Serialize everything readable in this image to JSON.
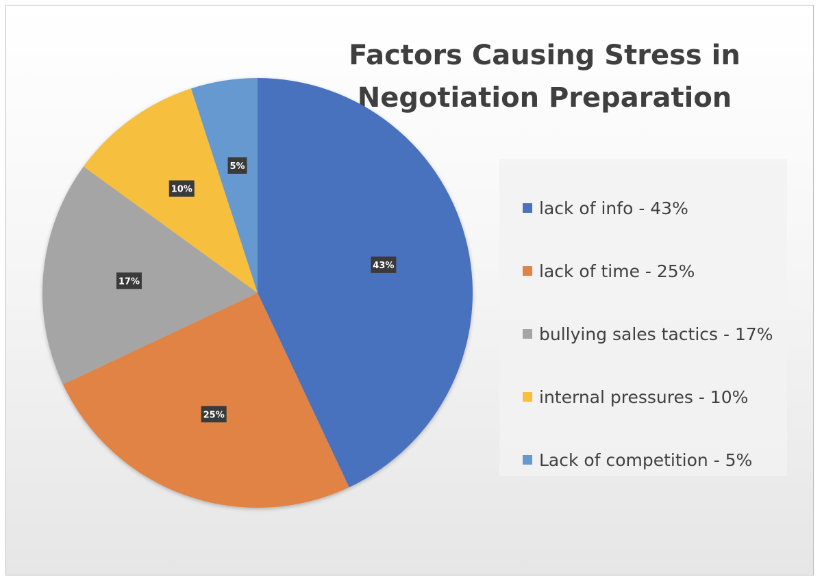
{
  "chart_data": {
    "type": "pie",
    "title": "Factors Causing Stress in Negotiation Preparation",
    "slices": [
      {
        "label": "lack of info - 43%",
        "value": 43,
        "data_label": "43%",
        "color": "#4a72be"
      },
      {
        "label": "lack of time - 25%",
        "value": 25,
        "data_label": "25%",
        "color": "#e08344"
      },
      {
        "label": "bullying sales tactics - 17%",
        "value": 17,
        "data_label": "17%",
        "color": "#a5a5a5"
      },
      {
        "label": "internal pressures - 10%",
        "value": 10,
        "data_label": "10%",
        "color": "#f6bf3e"
      },
      {
        "label": "Lack of competition - 5%",
        "value": 5,
        "data_label": "5%",
        "color": "#6699cf"
      }
    ],
    "legend_position": "right"
  }
}
